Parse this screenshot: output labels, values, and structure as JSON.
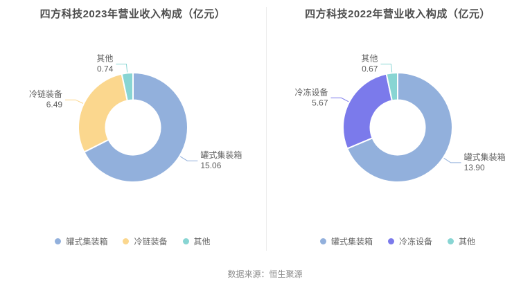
{
  "chart_data": [
    {
      "type": "pie",
      "title": "四方科技2023年营业收入构成（亿元）",
      "legend_position": "bottom",
      "donut": true,
      "inner_radius_pct": 50,
      "start_angle_deg": 0,
      "series": [
        {
          "name": "罐式集装箱",
          "value": 15.06,
          "label": "15.06",
          "color": "#92B0DC"
        },
        {
          "name": "冷链装备",
          "value": 6.49,
          "label": "6.49",
          "color": "#FBD78E"
        },
        {
          "name": "其他",
          "value": 0.74,
          "label": "0.74",
          "color": "#88D5D3"
        }
      ]
    },
    {
      "type": "pie",
      "title": "四方科技2022年营业收入构成（亿元）",
      "legend_position": "bottom",
      "donut": true,
      "inner_radius_pct": 50,
      "start_angle_deg": 0,
      "series": [
        {
          "name": "罐式集装箱",
          "value": 13.9,
          "label": "13.90",
          "color": "#92B0DC"
        },
        {
          "name": "冷冻设备",
          "value": 5.67,
          "label": "5.67",
          "color": "#7B7AEB"
        },
        {
          "name": "其他",
          "value": 0.67,
          "label": "0.67",
          "color": "#88D5D3"
        }
      ]
    }
  ],
  "footer": {
    "source_text": "数据来源：恒生聚源"
  }
}
